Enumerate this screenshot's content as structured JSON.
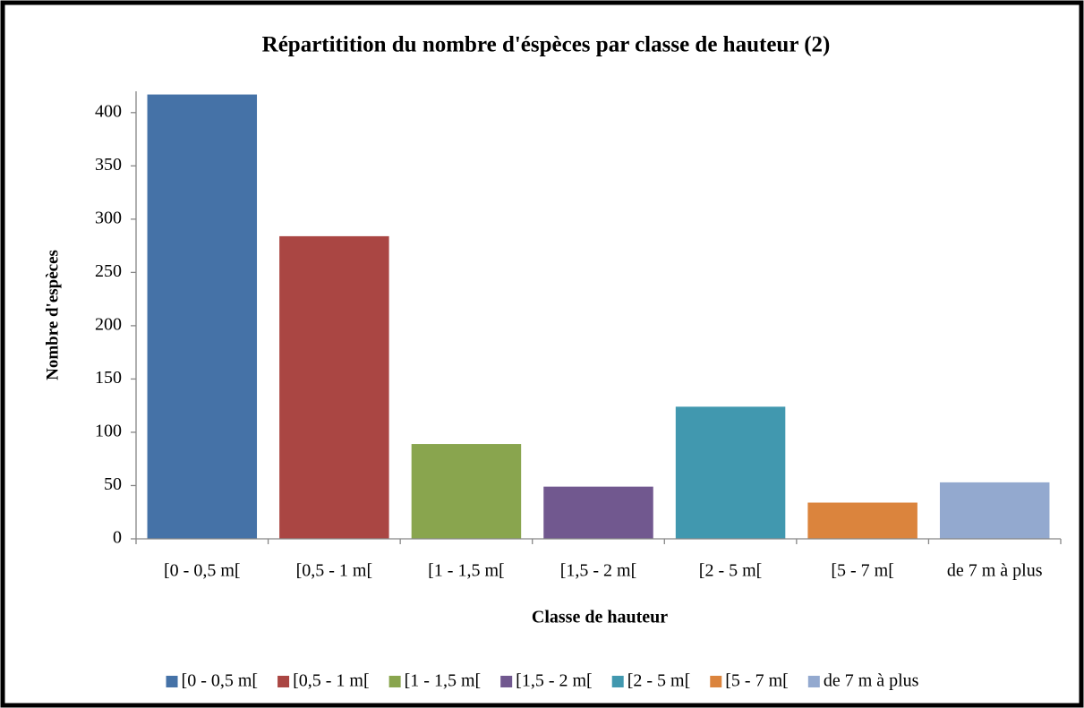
{
  "chart_data": {
    "type": "bar",
    "title": "Répartitition du nombre d'éspèces par classe de hauteur (2)",
    "x_label": "Classe de hauteur",
    "y_label": "Nombre d'espèces",
    "categories": [
      "[0 - 0,5 m[",
      "[0,5 - 1 m[",
      "[1 - 1,5 m[",
      "[1,5 - 2 m[",
      "[2 - 5 m[",
      "[5 - 7 m[",
      "de 7 m à plus"
    ],
    "values": [
      417,
      284,
      89,
      49,
      124,
      34,
      53
    ],
    "colors": [
      "#4572a7",
      "#aa4643",
      "#89a54e",
      "#71588f",
      "#4198af",
      "#db843d",
      "#93a9cf"
    ],
    "ylim": [
      0,
      420
    ],
    "yticks": [
      0,
      50,
      100,
      150,
      200,
      250,
      300,
      350,
      400
    ],
    "grid": false,
    "legend": "bottom"
  }
}
